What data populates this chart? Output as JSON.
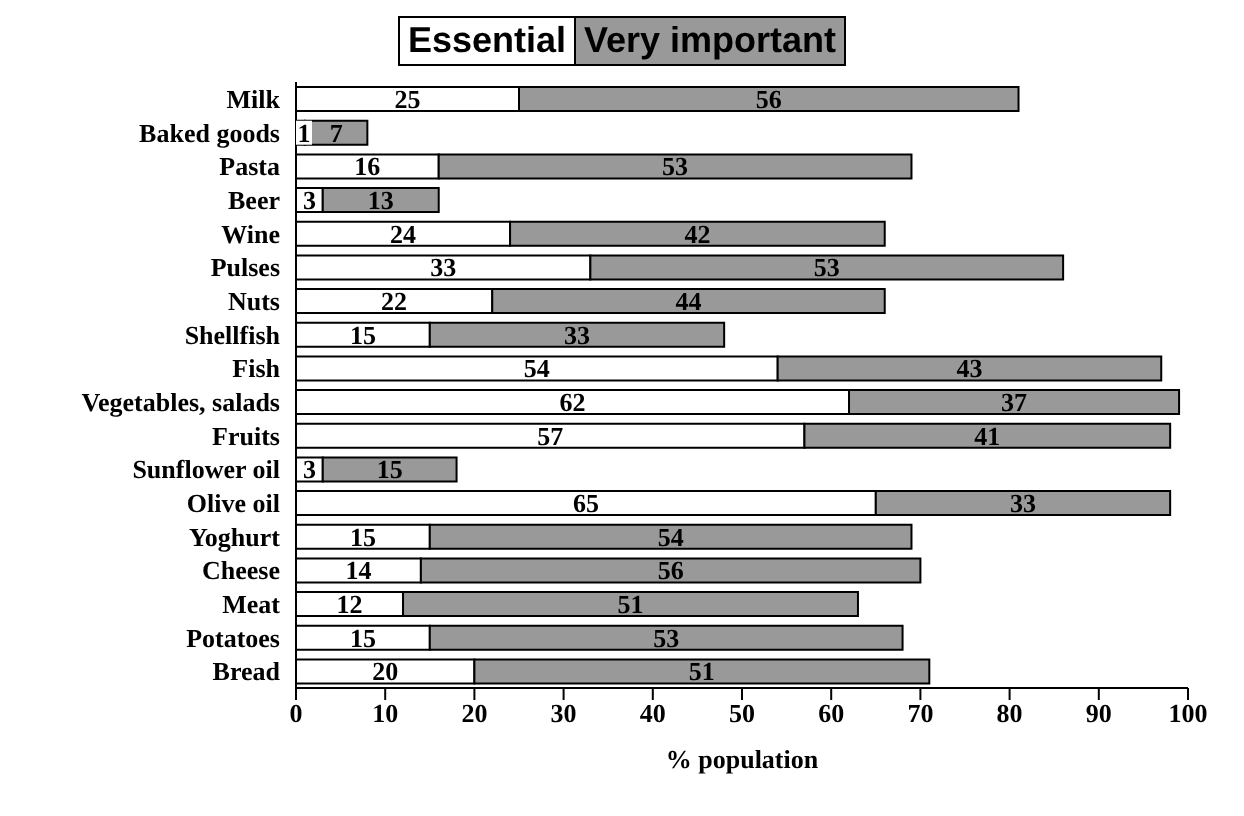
{
  "chart_data": {
    "type": "bar",
    "orientation": "horizontal",
    "stacked": true,
    "xlabel": "% population",
    "categories": [
      "Milk",
      "Baked goods",
      "Pasta",
      "Beer",
      "Wine",
      "Pulses",
      "Nuts",
      "Shellfish",
      "Fish",
      "Vegetables, salads",
      "Fruits",
      "Sunflower oil",
      "Olive oil",
      "Yoghurt",
      "Cheese",
      "Meat",
      "Potatoes",
      "Bread"
    ],
    "series": [
      {
        "name": "Essential",
        "color": "#ffffff",
        "values": [
          25,
          1,
          16,
          3,
          24,
          33,
          22,
          15,
          54,
          62,
          57,
          3,
          65,
          15,
          14,
          12,
          15,
          20
        ]
      },
      {
        "name": "Very important",
        "color": "#999999",
        "values": [
          56,
          7,
          53,
          13,
          42,
          53,
          44,
          33,
          43,
          37,
          41,
          15,
          33,
          54,
          56,
          51,
          53,
          51
        ]
      }
    ],
    "xlim": [
      0,
      100
    ],
    "xticks": [
      0,
      10,
      20,
      30,
      40,
      50,
      60,
      70,
      80,
      90,
      100
    ],
    "grid": false,
    "legend": "top",
    "data_labels": true
  }
}
